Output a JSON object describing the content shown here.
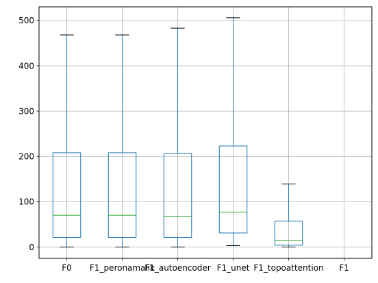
{
  "chart_data": {
    "type": "box",
    "title": "",
    "xlabel": "",
    "ylabel": "",
    "ylim": [
      -25,
      530
    ],
    "yticks": [
      0,
      100,
      200,
      300,
      400,
      500
    ],
    "grid": true,
    "categories": [
      "F0",
      "F1_peronamalik",
      "F1_autoencoder",
      "F1_unet",
      "F1_topoattention",
      "F1"
    ],
    "boxes": [
      {
        "whislo": 0,
        "q1": 21,
        "med": 70,
        "q3": 208,
        "whishi": 468
      },
      {
        "whislo": 0,
        "q1": 21,
        "med": 70,
        "q3": 208,
        "whishi": 468
      },
      {
        "whislo": 0,
        "q1": 21,
        "med": 68,
        "q3": 206,
        "whishi": 483
      },
      {
        "whislo": 3,
        "q1": 31,
        "med": 77,
        "q3": 223,
        "whishi": 506
      },
      {
        "whislo": 0,
        "q1": 4,
        "med": 15,
        "q3": 57,
        "whishi": 139
      },
      null
    ],
    "colors": {
      "box": "#1f77b4",
      "median": "#2ca02c",
      "grid": "#b0b0b0",
      "axis": "#000000"
    }
  }
}
